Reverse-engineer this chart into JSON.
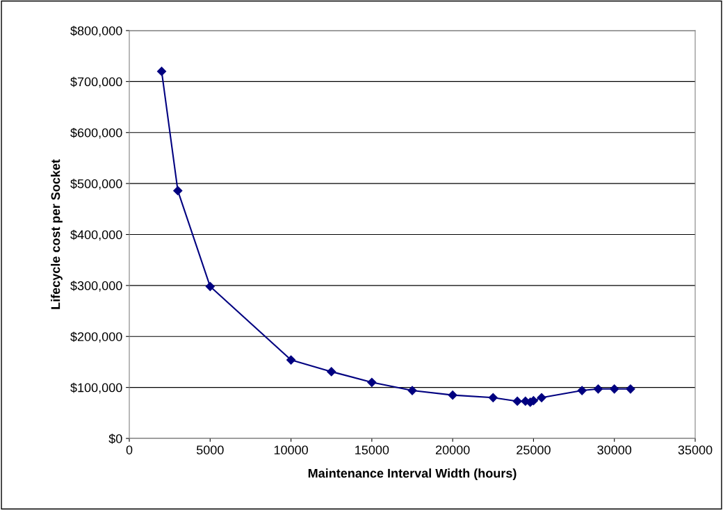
{
  "chart_data": {
    "type": "line",
    "xlabel": "Maintenance Interval Width (hours)",
    "ylabel": "Lifecycle cost per Socket",
    "x": [
      2000,
      3000,
      5000,
      10000,
      12500,
      15000,
      17500,
      20000,
      22500,
      24000,
      24500,
      24800,
      25000,
      25500,
      28000,
      29000,
      30000,
      31000
    ],
    "series": [
      {
        "color": "#000080",
        "values": [
          720000,
          486000,
          298000,
          154000,
          131000,
          110000,
          94000,
          85000,
          80000,
          73000,
          73000,
          71000,
          74000,
          80000,
          94000,
          97000,
          97000,
          97000
        ]
      }
    ],
    "xlim": [
      0,
      35000
    ],
    "xticks": [
      0,
      5000,
      10000,
      15000,
      20000,
      25000,
      30000,
      35000
    ],
    "ylim": [
      0,
      800000
    ],
    "yticks": [
      {
        "value": 0,
        "label": "$0"
      },
      {
        "value": 100000,
        "label": "$100,000"
      },
      {
        "value": 200000,
        "label": "$200,000"
      },
      {
        "value": 300000,
        "label": "$300,000"
      },
      {
        "value": 400000,
        "label": "$400,000"
      },
      {
        "value": 500000,
        "label": "$500,000"
      },
      {
        "value": 600000,
        "label": "$600,000"
      },
      {
        "value": 700000,
        "label": "$700,000"
      },
      {
        "value": 800000,
        "label": "$800,000"
      }
    ],
    "grid": "y",
    "marker": "diamond",
    "line_style": "solid",
    "legend": false
  }
}
